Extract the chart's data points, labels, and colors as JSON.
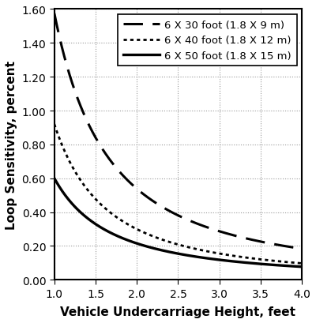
{
  "title": "",
  "xlabel": "Vehicle Undercarriage Height, feet",
  "ylabel": "Loop Sensitivity, percent",
  "xlim": [
    1.0,
    4.0
  ],
  "ylim": [
    0.0,
    1.6
  ],
  "xticks": [
    1.0,
    1.5,
    2.0,
    2.5,
    3.0,
    3.5,
    4.0
  ],
  "yticks": [
    0.0,
    0.2,
    0.4,
    0.6,
    0.8,
    1.0,
    1.2,
    1.4,
    1.6
  ],
  "curves": [
    {
      "label": "6 X 30 foot (1.8 X 9 m)",
      "linestyle": "dashed",
      "linewidth": 2.2,
      "color": "#000000",
      "A": 1.575,
      "n": 1.55
    },
    {
      "label": "6 X 40 foot (1.8 X 12 m)",
      "linestyle": "densely_dotted",
      "linewidth": 2.0,
      "color": "#000000",
      "A": 0.92,
      "n": 1.62
    },
    {
      "label": "6 X 50 foot (1.8 X 15 m)",
      "linestyle": "solid",
      "linewidth": 2.4,
      "color": "#000000",
      "A": 0.6,
      "n": 1.48
    }
  ],
  "grid_color": "#999999",
  "background_color": "#ffffff",
  "legend_fontsize": 9.5,
  "axis_fontsize": 11,
  "tick_fontsize": 10
}
